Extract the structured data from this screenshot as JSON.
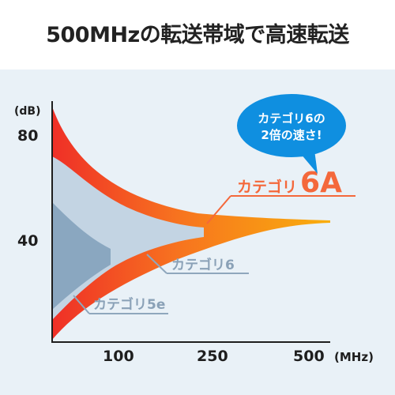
{
  "header": {
    "title": "500MHzの転送帯域で高速転送"
  },
  "colors": {
    "background": "#e9f1f7",
    "cat6a": "#f2552a",
    "cat6": "#c2d3e2",
    "cat5e": "#8aa8c2",
    "bubble": "#0f8fe0",
    "axis": "#1e1e1e"
  },
  "chart_data": {
    "type": "area",
    "ylabel": "(dB)",
    "xlabel": "(MHz)",
    "y_ticks": [
      "80",
      "40"
    ],
    "x_ticks": [
      "100",
      "250",
      "500"
    ],
    "series": [
      {
        "name": "カテゴリ5e",
        "max_MHz": 100
      },
      {
        "name": "カテゴリ6",
        "max_MHz": 250
      },
      {
        "name": "カテゴリ",
        "name_suffix": "6A",
        "max_MHz": 500
      }
    ]
  },
  "callout": {
    "line1": "カテゴリ6の",
    "line2": "2倍の速さ!"
  }
}
